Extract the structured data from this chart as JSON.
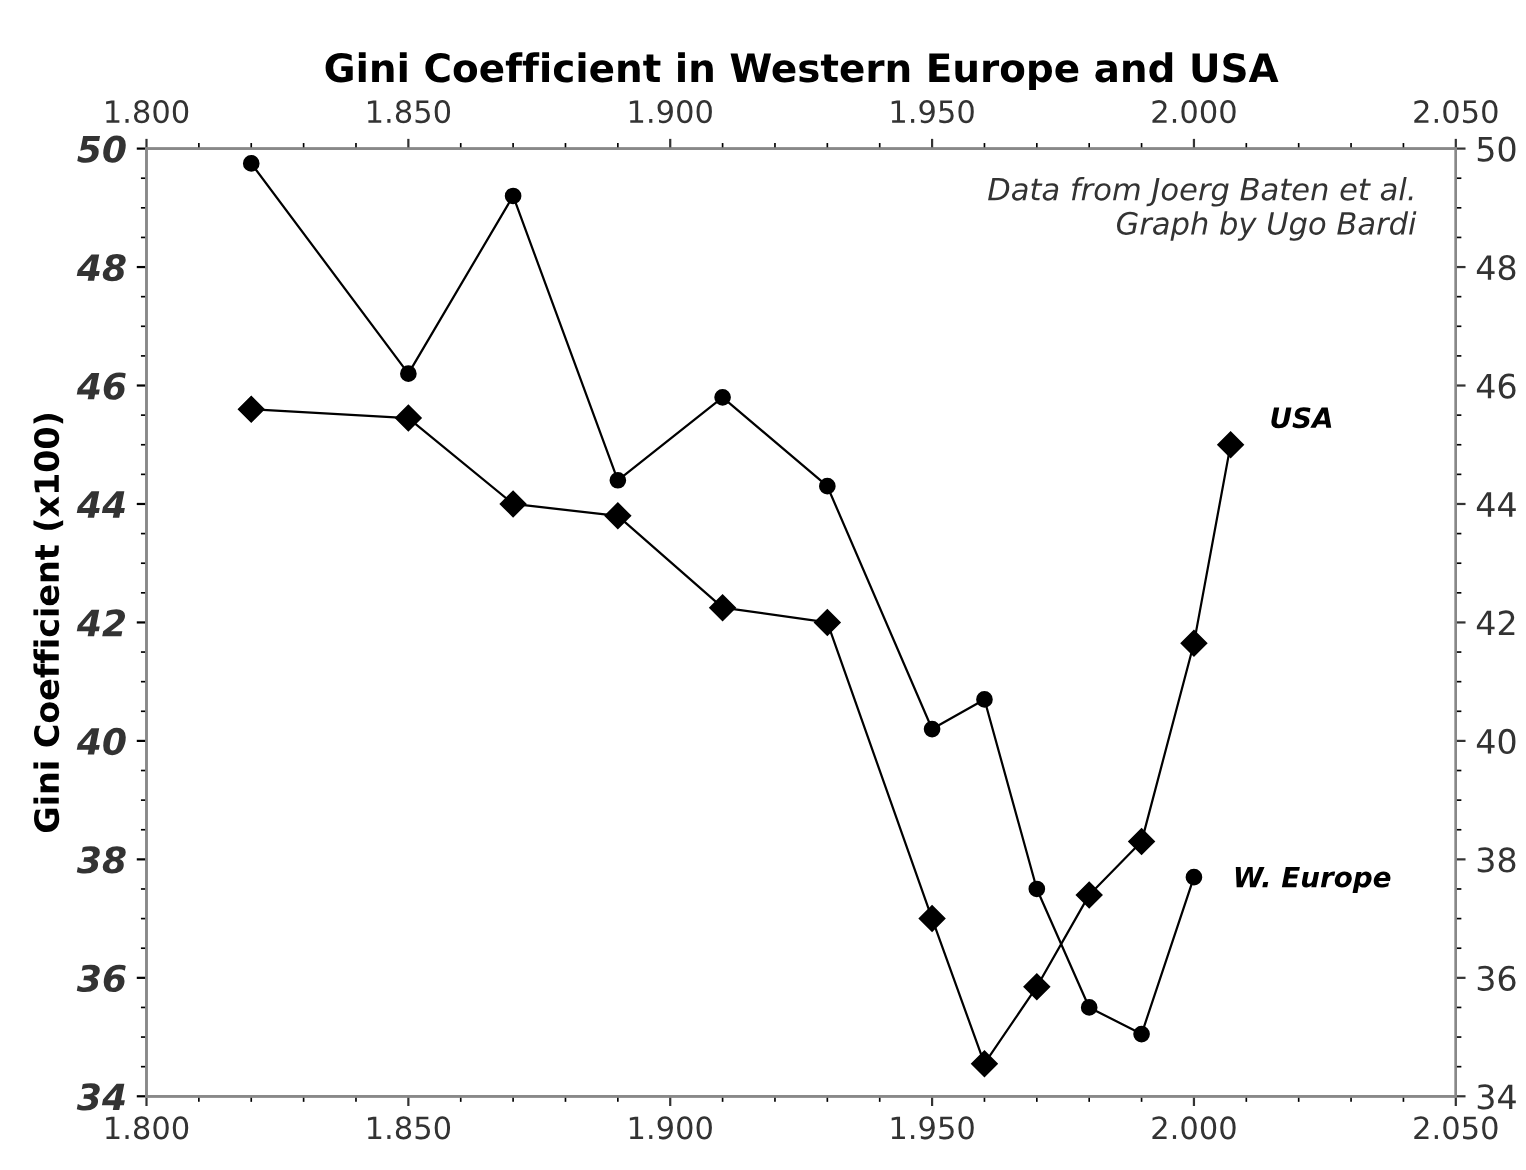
{
  "chart_data": {
    "type": "line",
    "title": "Gini Coefficient in Western Europe and USA",
    "ylabel": "Gini Coefficient (x100)",
    "annotations": [
      "Data from Joerg Baten et al.\nGraph by Ugo Bardi"
    ],
    "series": [
      {
        "name": "USA",
        "color": "#000000",
        "marker": "diamond",
        "x": [
          1820,
          1850,
          1870,
          1890,
          1910,
          1930,
          1950,
          1960,
          1970,
          1980,
          1990,
          2000,
          2007
        ],
        "values": [
          45.6,
          45.45,
          44.0,
          43.8,
          42.25,
          42.0,
          37.0,
          34.55,
          35.85,
          37.4,
          38.3,
          41.65,
          45.0
        ]
      },
      {
        "name": "W. Europe",
        "color": "#000000",
        "marker": "circle",
        "x": [
          1820,
          1850,
          1870,
          1890,
          1910,
          1930,
          1950,
          1960,
          1970,
          1980,
          1990,
          2000
        ],
        "values": [
          49.75,
          46.2,
          49.2,
          44.4,
          45.8,
          44.3,
          40.2,
          40.7,
          37.5,
          35.5,
          35.05,
          37.7
        ]
      }
    ],
    "xlim": [
      1800,
      2050
    ],
    "xticks": [
      {
        "value": 1800,
        "label": "1.800"
      },
      {
        "value": 1850,
        "label": "1.850"
      },
      {
        "value": 1900,
        "label": "1.900"
      },
      {
        "value": 1950,
        "label": "1.950"
      },
      {
        "value": 2000,
        "label": "2.000"
      },
      {
        "value": 2050,
        "label": "2.050"
      }
    ],
    "x2lim": [
      1800,
      2050
    ],
    "x2ticks": [
      {
        "value": 1800,
        "label": "1.800"
      },
      {
        "value": 1850,
        "label": "1.850"
      },
      {
        "value": 1900,
        "label": "1.900"
      },
      {
        "value": 1950,
        "label": "1.950"
      },
      {
        "value": 2000,
        "label": "2.000"
      },
      {
        "value": 2050,
        "label": "2.050"
      }
    ],
    "ylim": [
      34,
      50
    ],
    "yticks": [
      34,
      36,
      38,
      40,
      42,
      44,
      46,
      48,
      50
    ],
    "y2lim": [
      34,
      50
    ],
    "y2ticks": [
      34,
      36,
      38,
      40,
      42,
      44,
      46,
      48,
      50
    ],
    "grid": false,
    "legend": false,
    "line_style": "solid"
  }
}
